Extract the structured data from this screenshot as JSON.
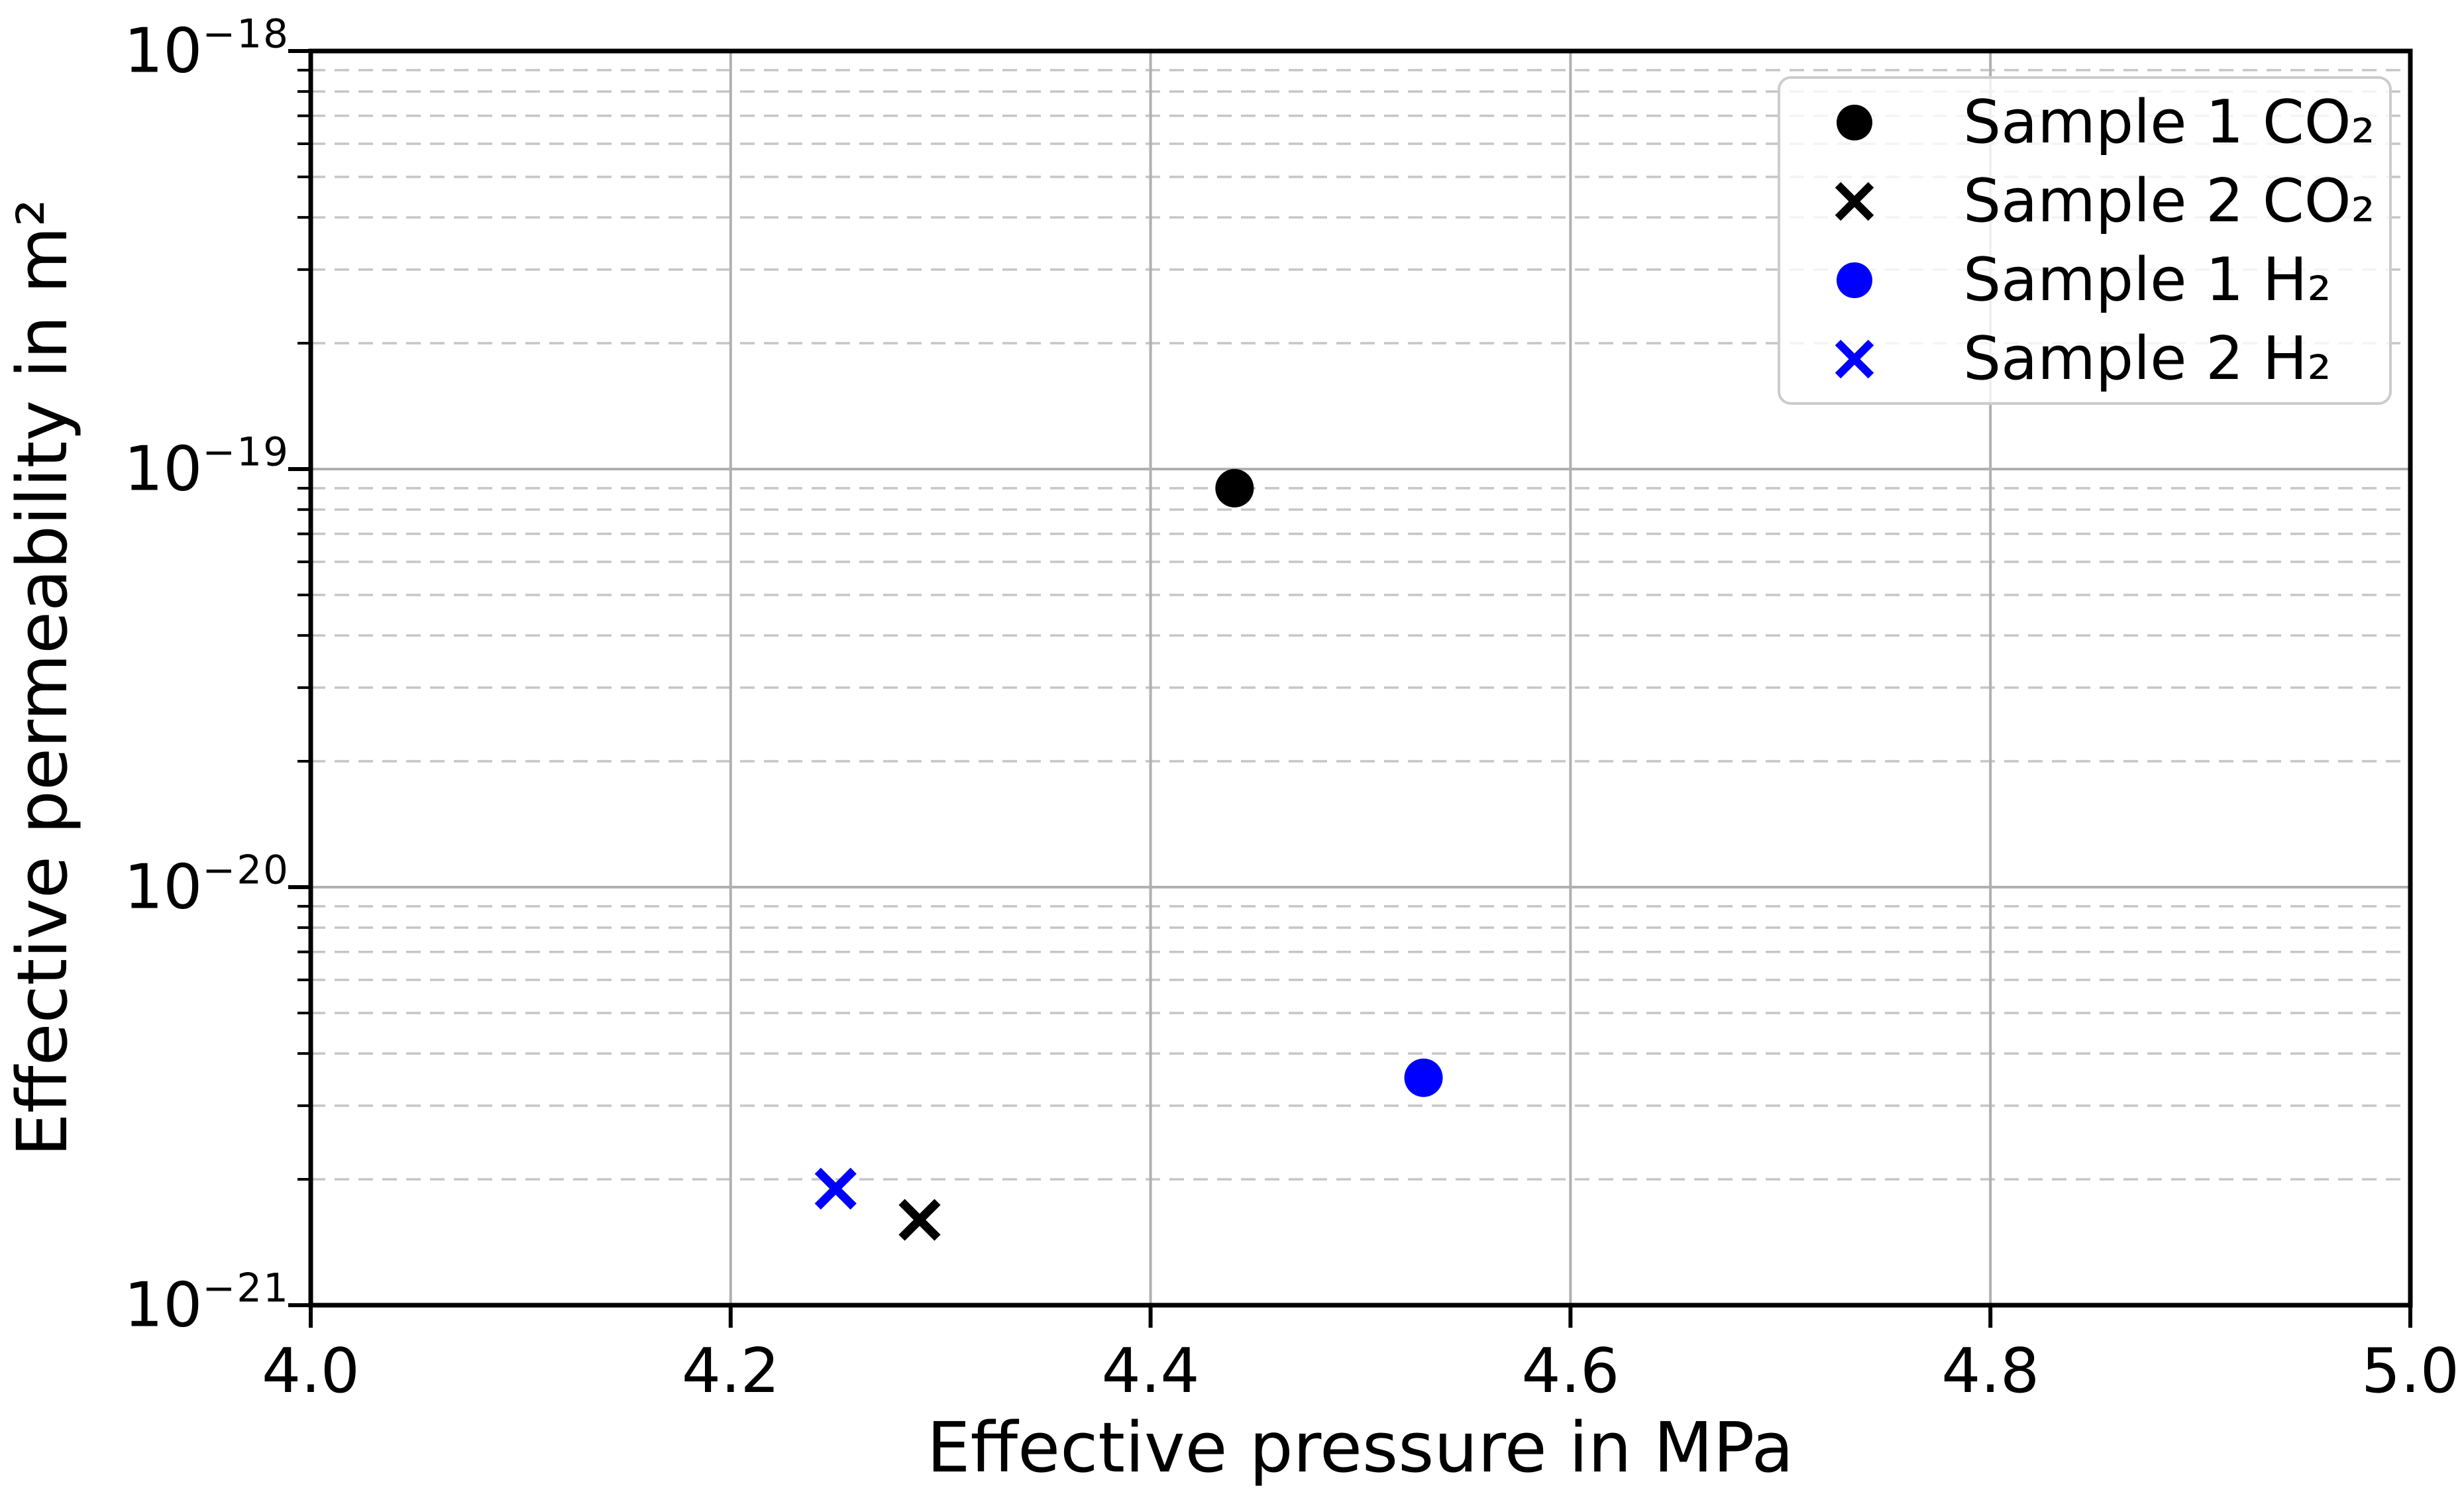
{
  "figure": {
    "background": "#ffffff"
  },
  "chart_data": {
    "type": "scatter",
    "title": "",
    "xlabel": "Effective pressure in MPa",
    "ylabel": "Effective permeability in m²",
    "x_axis": {
      "min": 4.0,
      "max": 5.0,
      "tick_labels": [
        "4.0",
        "4.2",
        "4.4",
        "4.6",
        "4.8",
        "5.0"
      ]
    },
    "y_axis": {
      "scale": "log",
      "min_exp": -21,
      "max_exp": -18,
      "tick_labels": [
        {
          "base": "10",
          "exp": "−18"
        },
        {
          "base": "10",
          "exp": "−19"
        },
        {
          "base": "10",
          "exp": "−20"
        },
        {
          "base": "10",
          "exp": "−21"
        }
      ]
    },
    "grid": {
      "major_style": "solid",
      "minor_style": "dashed",
      "major_color": "#b0b0b0",
      "minor_color": "#c6c6c6"
    },
    "axes_color": "#000000",
    "legend": {
      "position": "upper-right",
      "border_color": "#cccccc"
    },
    "series": [
      {
        "name": "Sample 1 CO₂",
        "marker": "circle",
        "color": "#000000",
        "points": [
          [
            4.44,
            9e-20
          ]
        ]
      },
      {
        "name": "Sample 2 CO₂",
        "marker": "x",
        "color": "#000000",
        "points": [
          [
            4.29,
            1.6e-21
          ]
        ]
      },
      {
        "name": "Sample 1 H₂",
        "marker": "circle",
        "color": "#0000ff",
        "points": [
          [
            4.53,
            3.5e-21
          ]
        ]
      },
      {
        "name": "Sample 2 H₂",
        "marker": "x",
        "color": "#0000ff",
        "points": [
          [
            4.25,
            1.9e-21
          ]
        ]
      }
    ]
  }
}
